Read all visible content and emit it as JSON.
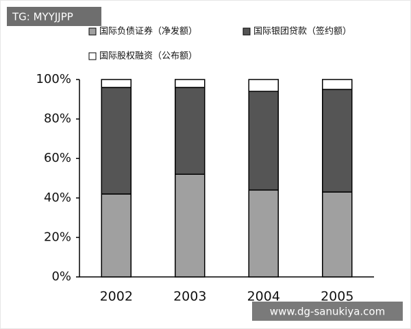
{
  "chart_data": {
    "type": "stacked_bar",
    "categories": [
      "2002",
      "2003",
      "2004",
      "2005"
    ],
    "series": [
      {
        "name": "国际负债证券（净发额）",
        "color": "#a0a0a0",
        "values": [
          42,
          52,
          44,
          43
        ]
      },
      {
        "name": "国际银团贷款（签约额）",
        "color": "#555555",
        "values": [
          54,
          44,
          50,
          52
        ]
      },
      {
        "name": "国际股权融资（公布额）",
        "color": "#ffffff",
        "values": [
          4,
          4,
          6,
          5
        ]
      }
    ],
    "ylim": [
      0,
      100
    ],
    "yticks": [
      {
        "value": 0,
        "label": "0%"
      },
      {
        "value": 20,
        "label": "20%"
      },
      {
        "value": 40,
        "label": "40%"
      },
      {
        "value": 60,
        "label": "60%"
      },
      {
        "value": 80,
        "label": "80%"
      },
      {
        "value": 100,
        "label": "100%"
      }
    ],
    "grid": false
  },
  "watermarks": [
    "TG: MYYJJPP",
    "www.dg-sanukiya.com"
  ]
}
